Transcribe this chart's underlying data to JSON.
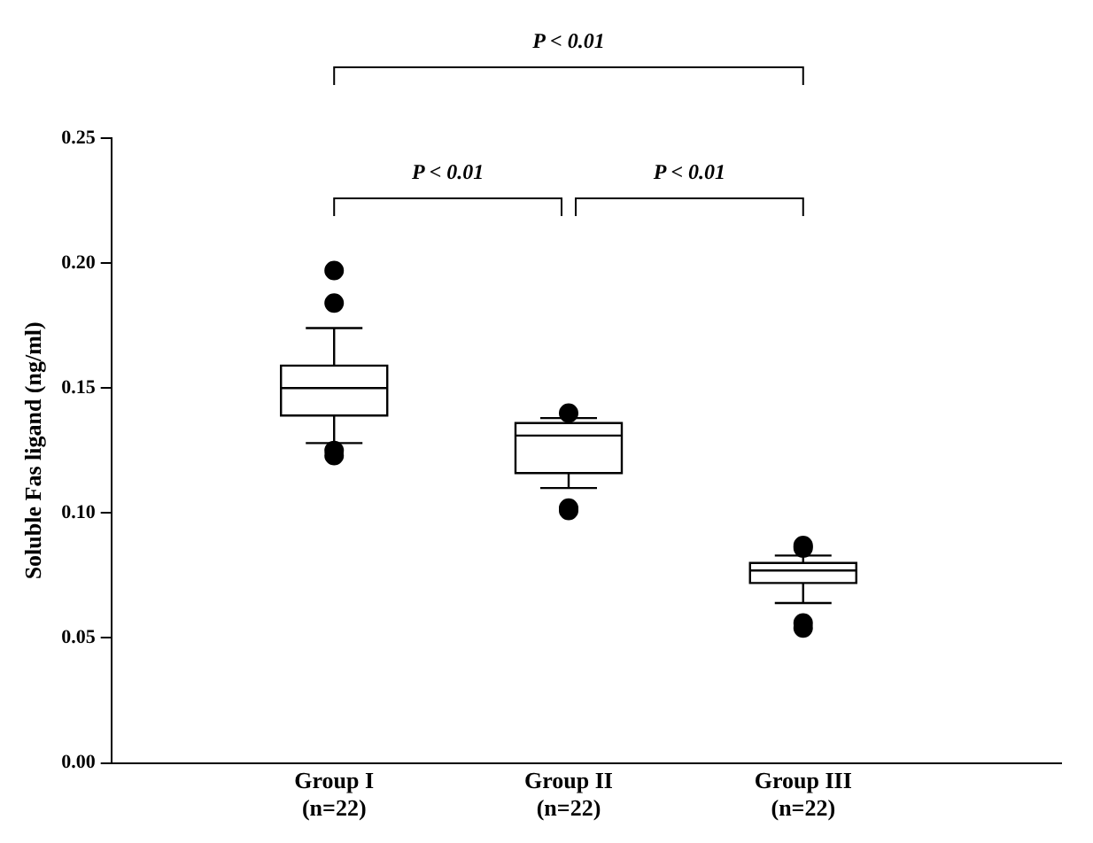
{
  "chart_data": {
    "type": "box",
    "ylabel": "Soluble Fas ligand (ng/ml)",
    "categories": [
      "Group I\n(n=22)",
      "Group II\n(n=22)",
      "Group III\n(n=22)"
    ],
    "boxes": [
      {
        "low": 0.128,
        "q1": 0.139,
        "median": 0.15,
        "q3": 0.159,
        "high": 0.174,
        "outliers": [
          0.197,
          0.184,
          0.125,
          0.123
        ]
      },
      {
        "low": 0.11,
        "q1": 0.116,
        "median": 0.131,
        "q3": 0.136,
        "high": 0.138,
        "outliers": [
          0.14,
          0.102,
          0.101
        ]
      },
      {
        "low": 0.064,
        "q1": 0.072,
        "median": 0.077,
        "q3": 0.08,
        "high": 0.083,
        "outliers": [
          0.087,
          0.086,
          0.056,
          0.054
        ]
      }
    ],
    "color": "#000000",
    "marker": "circle",
    "ylim": [
      0,
      0.25
    ],
    "yticks": [
      {
        "value": 0,
        "label": "0.00"
      },
      {
        "value": 0.05,
        "label": "0.05"
      },
      {
        "value": 0.1,
        "label": "0.10"
      },
      {
        "value": 0.15,
        "label": "0.15"
      },
      {
        "value": 0.2,
        "label": "0.20"
      },
      {
        "value": 0.25,
        "label": "0.25"
      }
    ],
    "grid": false,
    "legend": false,
    "annotations": [
      "P < 0.01",
      "P < 0.01",
      "P < 0.01"
    ]
  }
}
